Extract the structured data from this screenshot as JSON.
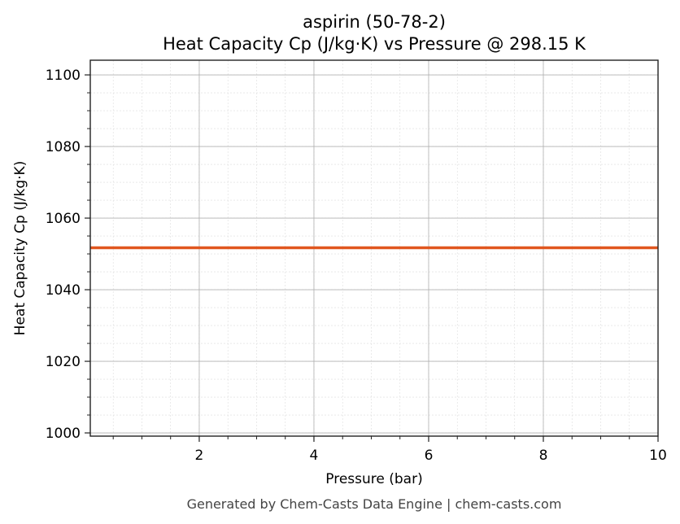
{
  "chart_data": {
    "type": "line",
    "title": "aspirin (50-78-2)",
    "subtitle": "Heat Capacity Cp (J/kg·K) vs Pressure @ 298.15 K",
    "xlabel": "Pressure (bar)",
    "ylabel": "Heat Capacity Cp (J/kg·K)",
    "xlim": [
      0.1,
      10
    ],
    "ylim": [
      999.1,
      1104.1
    ],
    "xticks": [
      2,
      4,
      6,
      8,
      10
    ],
    "yticks": [
      1000,
      1020,
      1040,
      1060,
      1080,
      1100
    ],
    "x_minor_step": 0.5,
    "y_minor_step": 5,
    "grid": true,
    "series": [
      {
        "x": [
          0.1,
          10
        ],
        "y": [
          1051.7,
          1051.7
        ],
        "color": "#e0561f"
      }
    ],
    "footer": "Generated by Chem-Casts Data Engine | chem-casts.com"
  }
}
